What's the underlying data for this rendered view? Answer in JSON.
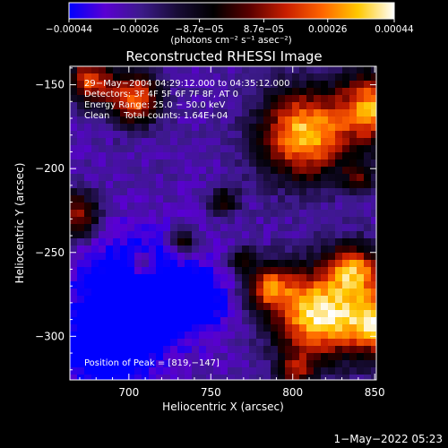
{
  "chart_data": {
    "type": "heatmap",
    "title": "Reconstructed RHESSI Image",
    "xlabel": "Heliocentric X (arcsec)",
    "ylabel": "Heliocentric Y (arcsec)",
    "xlim": [
      664,
      851
    ],
    "ylim": [
      -326,
      -139
    ],
    "x_ticks": [
      700,
      750,
      800,
      850
    ],
    "x_tick_labels": [
      "700",
      "750",
      "800",
      "850"
    ],
    "y_ticks": [
      -150,
      -200,
      -250,
      -300
    ],
    "y_tick_labels": [
      "−150",
      "−200",
      "−250",
      "−300"
    ],
    "colorbar": {
      "range": [
        -0.00044,
        0.00044
      ],
      "ticks": [
        -0.00044,
        -0.00026,
        -8.7e-05,
        8.7e-05,
        0.00026,
        0.00044
      ],
      "tick_labels": [
        "−0.00044",
        "−0.00026",
        "−8.7e−05",
        "8.7e−05",
        "0.00026",
        "0.00044"
      ],
      "units_label": "(photons cm⁻² s⁻¹ asec⁻²)"
    },
    "info_lines": [
      "29−May−2004 04:29:12.000 to 04:35:12.000",
      "Detectors: 3F 4F 5F 6F 7F 8F, AT 0",
      "Energy Range: 25.0 − 50.0 keV",
      "Clean     Total counts: 1.64E+04"
    ],
    "peak_label": "Position of Peak = [819,−147]",
    "peak_position": [
      819,
      -147
    ],
    "energy_range_kev": [
      25.0,
      50.0
    ],
    "total_counts": 16400,
    "colors": {
      "colormap": [
        "#0000ff",
        "#5a00d2",
        "#3c1a8a",
        "#180c36",
        "#000000",
        "#5a0000",
        "#c81e00",
        "#ff6400",
        "#ffc800",
        "#ffffff"
      ]
    }
  },
  "timestamp": "1−May−2022 05:23"
}
